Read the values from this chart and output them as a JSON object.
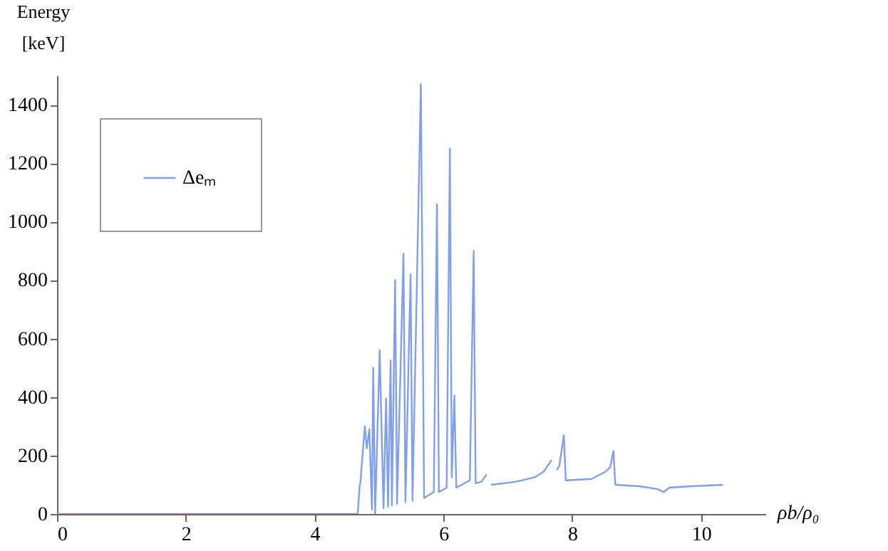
{
  "chart_data": {
    "type": "line",
    "ylabel": "Energy\n[keV]",
    "xlabel": "ρb/ρ₀",
    "xlim": [
      0,
      11
    ],
    "xticks": [
      0,
      2,
      4,
      6,
      8,
      10
    ],
    "ylim": [
      0,
      1500
    ],
    "yticks": [
      0,
      200,
      400,
      600,
      800,
      1000,
      1200,
      1400
    ],
    "grid": false,
    "legend": "top left",
    "line_style": "solid",
    "series": [
      {
        "name": "Δeₘ",
        "color": "#7f9ff0",
        "x": [
          0,
          4.67,
          4.7,
          4.71,
          4.78,
          4.81,
          4.85,
          4.89,
          4.91,
          4.94,
          5.01,
          5.07,
          5.11,
          5.14,
          5.18,
          5.2,
          5.25,
          5.28,
          5.38,
          5.41,
          5.49,
          5.52,
          5.65,
          5.7,
          5.85,
          5.9,
          5.93,
          6.05,
          6.1,
          6.13,
          6.17,
          6.2,
          6.41,
          6.47,
          6.5,
          6.59,
          6.67,
          6.7,
          6.74,
          7.11,
          7.41,
          7.56,
          7.68,
          7.73,
          7.76,
          7.8,
          7.87,
          7.9,
          8.3,
          8.52,
          8.59,
          8.64,
          8.67,
          9.04,
          9.33,
          9.42,
          9.51,
          9.85,
          10.34
        ],
        "values": [
          0,
          0,
          100,
          105,
          300,
          225,
          290,
          15,
          500,
          0,
          560,
          20,
          395,
          25,
          525,
          30,
          800,
          35,
          890,
          40,
          820,
          45,
          1470,
          55,
          75,
          1060,
          75,
          90,
          1250,
          125,
          405,
          90,
          115,
          900,
          105,
          110,
          135,
          null,
          100,
          110,
          125,
          145,
          185,
          null,
          150,
          165,
          270,
          115,
          120,
          145,
          160,
          215,
          100,
          95,
          85,
          75,
          90,
          95,
          100
        ]
      }
    ]
  }
}
